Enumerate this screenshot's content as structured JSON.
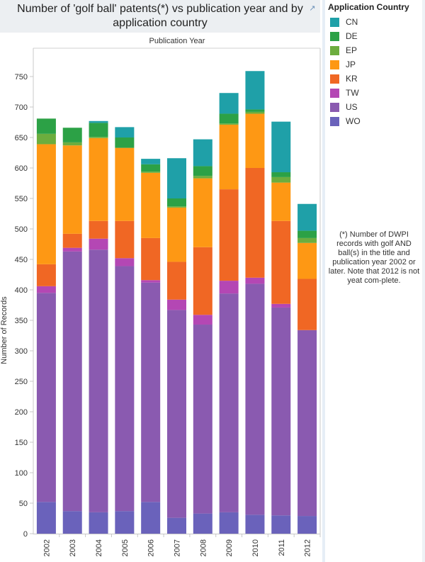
{
  "header": {
    "title": "Number of 'golf ball' patents(*) vs publication year and by application country",
    "popout_icon": "external-link-icon"
  },
  "legend": {
    "title": "Application Country",
    "items": [
      {
        "label": "CN",
        "color": "#1fa0a8"
      },
      {
        "label": "DE",
        "color": "#2ca146"
      },
      {
        "label": "EP",
        "color": "#6cad3e"
      },
      {
        "label": "JP",
        "color": "#fe9814"
      },
      {
        "label": "KR",
        "color": "#f06724"
      },
      {
        "label": "TW",
        "color": "#b447b4"
      },
      {
        "label": "US",
        "color": "#8a5ab0"
      },
      {
        "label": "WO",
        "color": "#6a62bb"
      }
    ]
  },
  "footnote": "(*) Number of DWPI records with golf AND ball(s) in the title and publication year 2002 or later. Note that 2012 is not yeat com-plete.",
  "chart_data": {
    "type": "bar",
    "stacked": true,
    "title": "Number of 'golf ball' patents(*) vs publication year and by application country",
    "xlabel": "Publication Year",
    "ylabel": "Number of Records",
    "ylim": [
      0,
      780
    ],
    "yticks": [
      0,
      50,
      100,
      150,
      200,
      250,
      300,
      350,
      400,
      450,
      500,
      550,
      600,
      650,
      700,
      750
    ],
    "grid": false,
    "legend_position": "right",
    "categories": [
      "2002",
      "2003",
      "2004",
      "2005",
      "2006",
      "2007",
      "2008",
      "2009",
      "2010",
      "2011",
      "2012"
    ],
    "series": [
      {
        "name": "WO",
        "color": "#6a62bb",
        "values": [
          52,
          37,
          35,
          37,
          52,
          26,
          33,
          35,
          31,
          30,
          29
        ]
      },
      {
        "name": "US",
        "color": "#8a5ab0",
        "values": [
          343,
          426,
          431,
          402,
          360,
          341,
          310,
          359,
          379,
          341,
          305
        ]
      },
      {
        "name": "TW",
        "color": "#b447b4",
        "values": [
          11,
          6,
          18,
          13,
          4,
          17,
          16,
          21,
          10,
          6,
          0
        ]
      },
      {
        "name": "KR",
        "color": "#f06724",
        "values": [
          36,
          23,
          29,
          61,
          69,
          62,
          111,
          150,
          180,
          136,
          84
        ]
      },
      {
        "name": "JP",
        "color": "#fe9814",
        "values": [
          197,
          145,
          136,
          120,
          107,
          89,
          113,
          106,
          89,
          63,
          59
        ]
      },
      {
        "name": "EP",
        "color": "#6cad3e",
        "values": [
          17,
          5,
          2,
          0,
          2,
          2,
          4,
          2,
          3,
          9,
          8
        ]
      },
      {
        "name": "DE",
        "color": "#2ca146",
        "values": [
          25,
          24,
          23,
          17,
          12,
          13,
          16,
          16,
          4,
          8,
          12
        ]
      },
      {
        "name": "CN",
        "color": "#1fa0a8",
        "values": [
          0,
          0,
          3,
          17,
          9,
          66,
          44,
          34,
          63,
          83,
          44
        ]
      }
    ]
  }
}
